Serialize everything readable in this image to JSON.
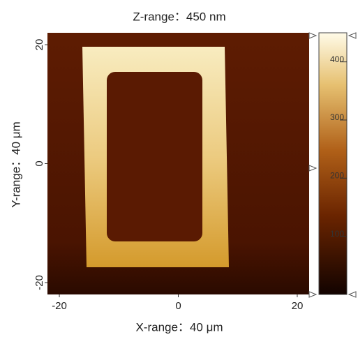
{
  "chart_data": {
    "type": "image",
    "title": "Z-range：450 nm",
    "x_label": "X-range：40 μm",
    "y_label": "Y-range：40 μm",
    "xlim": [
      -22,
      22
    ],
    "xticks": [
      -20,
      0,
      20
    ],
    "ylim": [
      -22,
      22
    ],
    "yticks": [
      -20,
      0,
      20
    ],
    "zlim": [
      0,
      450
    ],
    "zticks": [
      100,
      200,
      300,
      400
    ]
  }
}
